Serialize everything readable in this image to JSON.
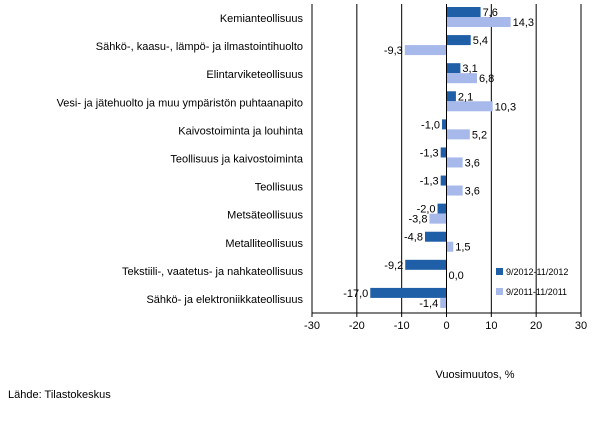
{
  "source_note": "Lähde: Tilastokeskus",
  "chart_data": {
    "type": "bar",
    "orientation": "horizontal",
    "categories": [
      "Kemianteollisuus",
      "Sähkö-, kaasu-, lämpö- ja ilmastointihuolto",
      "Elintarviketeollisuus",
      "Vesi- ja jätehuolto ja muu ympäristön puhtaanapito",
      "Kaivostoiminta ja louhinta",
      "Teollisuus ja kaivostoiminta",
      "Teollisuus",
      "Metsäteollisuus",
      "Metalliteollisuus",
      "Tekstiili-, vaatetus- ja nahkateollisuus",
      "Sähkö- ja elektroniikkateollisuus"
    ],
    "series": [
      {
        "name": "9/2012-11/2012",
        "color": "#1f5fa8",
        "values": [
          7.6,
          5.4,
          3.1,
          2.1,
          -1.0,
          -1.3,
          -1.3,
          -2.0,
          -4.8,
          -9.2,
          -17.0
        ],
        "labels": [
          "7,6",
          "5,4",
          "3,1",
          "2,1",
          "-1,0",
          "-1,3",
          "-1,3",
          "-2,0",
          "-4,8",
          "-9,2",
          "-17,0"
        ]
      },
      {
        "name": "9/2011-11/2011",
        "color": "#a7b8ea",
        "values": [
          14.3,
          -9.3,
          6.8,
          10.3,
          5.2,
          3.6,
          3.6,
          -3.8,
          1.5,
          0.0,
          -1.4
        ],
        "labels": [
          "14,3",
          "-9,3",
          "6,8",
          "10,3",
          "5,2",
          "3,6",
          "3,6",
          "-3,8",
          "1,5",
          "0,0",
          "-1,4"
        ]
      }
    ],
    "xlim": [
      -30,
      30
    ],
    "ticks": [
      -30,
      -20,
      -10,
      0,
      10,
      20,
      30
    ],
    "tick_labels": [
      "-30",
      "-20",
      "-10",
      "0",
      "10",
      "20",
      "30"
    ],
    "xlabel": "Vuosimuutos, %",
    "grid": true,
    "legend_position": "bottom-right"
  }
}
